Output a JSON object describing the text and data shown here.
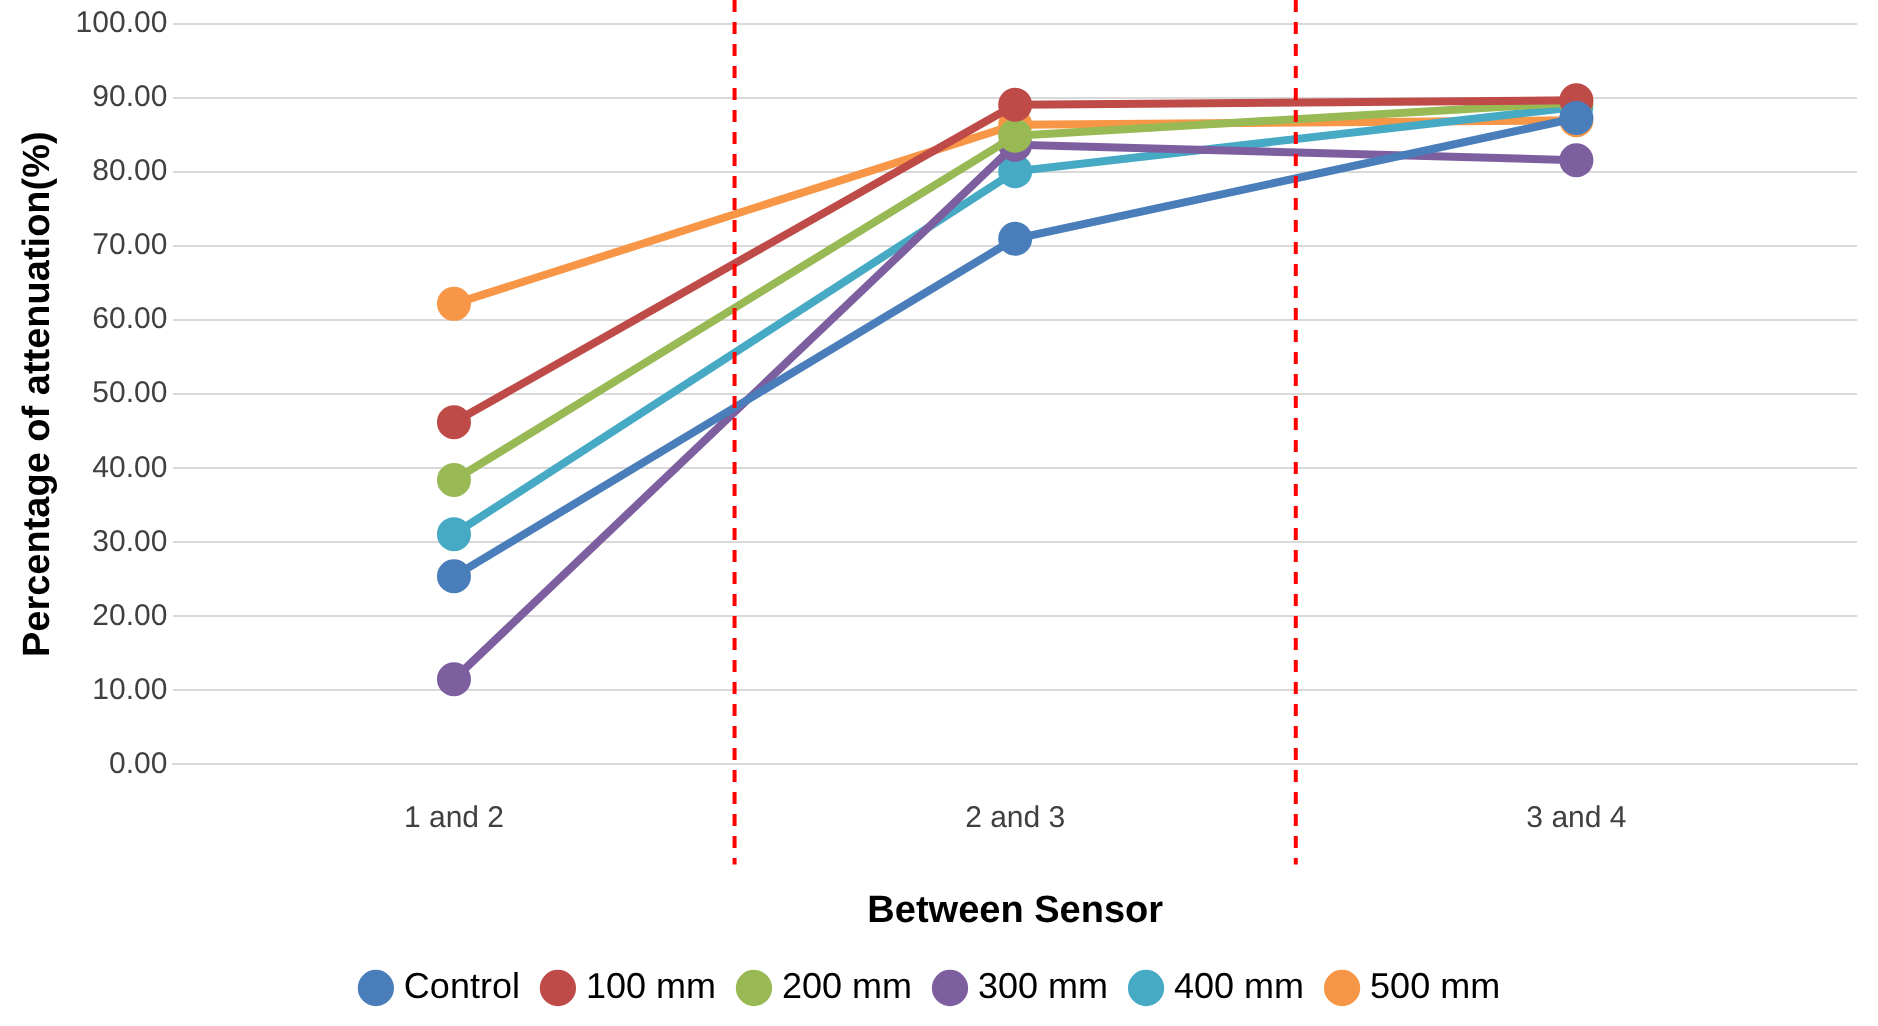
{
  "chart_data": {
    "type": "line",
    "xlabel": "Between Sensor",
    "ylabel": "Percentage of attenuation(%)",
    "categories": [
      "1 and 2",
      "2 and 3",
      "3 and 4"
    ],
    "ylim": [
      0,
      100
    ],
    "yticks": [
      {
        "value": 0,
        "label": "0.00"
      },
      {
        "value": 10,
        "label": "10.00"
      },
      {
        "value": 20,
        "label": "20.00"
      },
      {
        "value": 30,
        "label": "30.00"
      },
      {
        "value": 40,
        "label": "40.00"
      },
      {
        "value": 50,
        "label": "50.00"
      },
      {
        "value": 60,
        "label": "60.00"
      },
      {
        "value": 70,
        "label": "70.00"
      },
      {
        "value": 80,
        "label": "80.00"
      },
      {
        "value": 90,
        "label": "90.00"
      },
      {
        "value": 100,
        "label": "100.00"
      }
    ],
    "series": [
      {
        "name": "Control",
        "color": "#4a7ebb",
        "values": [
          25.4,
          71,
          87.3
        ]
      },
      {
        "name": "100 mm",
        "color": "#be4b48",
        "values": [
          46.2,
          89.1,
          89.7
        ]
      },
      {
        "name": "200 mm",
        "color": "#98b954",
        "values": [
          38.4,
          84.9,
          89.4
        ]
      },
      {
        "name": "300 mm",
        "color": "#7d5fa0",
        "values": [
          11.5,
          83.7,
          81.6
        ]
      },
      {
        "name": "400 mm",
        "color": "#46aac5",
        "values": [
          31.1,
          80.1,
          88.8
        ]
      },
      {
        "name": "500 mm",
        "color": "#f79646",
        "values": [
          62.2,
          86.4,
          87
        ]
      }
    ],
    "grid": "y",
    "legend": "bottom",
    "marker": "circle",
    "line_style": "solid"
  }
}
